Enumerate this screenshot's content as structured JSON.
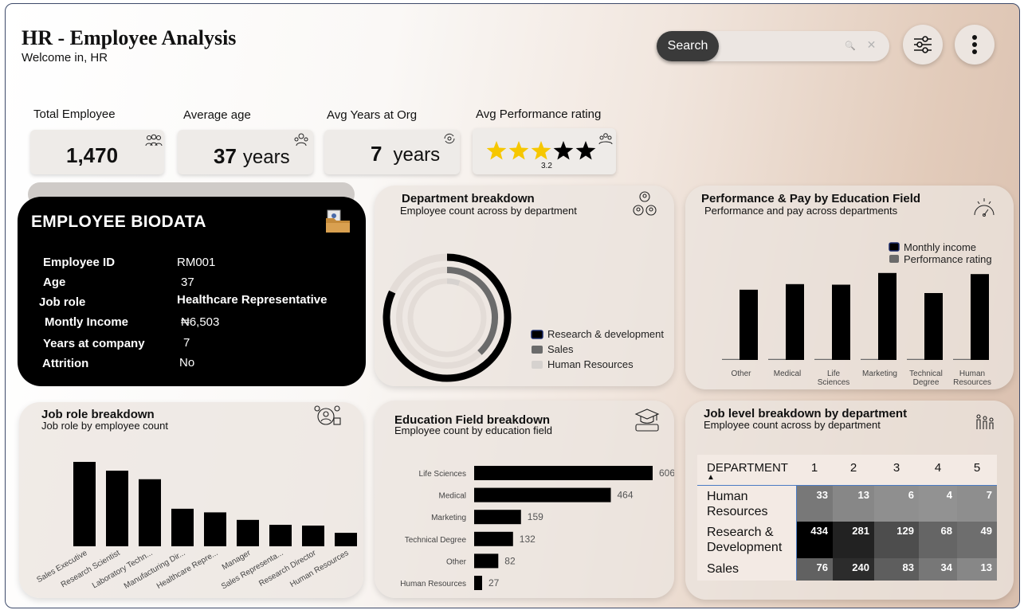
{
  "header": {
    "title": "HR - Employee Analysis",
    "subtitle": "Welcome in, HR",
    "search_label": "Search",
    "search_icon": "🔍",
    "clear_icon": "✕"
  },
  "kpis": [
    {
      "label": "Total Employee",
      "value": "1,470",
      "unit": ""
    },
    {
      "label": "Average age",
      "value": "37",
      "unit": "years"
    },
    {
      "label": "Avg Years at Org",
      "value": "7",
      "unit": "years"
    },
    {
      "label": "Avg Performance rating",
      "value": "3.2",
      "stars_filled": 3,
      "stars_total": 5,
      "colors": {
        "filled": "#f6c700",
        "empty": "#000000"
      }
    }
  ],
  "biodata": {
    "title": "EMPLOYEE BIODATA",
    "fields": [
      {
        "label": "Employee ID",
        "value": "RM001"
      },
      {
        "label": "Age",
        "value": "37"
      },
      {
        "label": "Job role",
        "value": "Healthcare Representative"
      },
      {
        "label": "Montly Income",
        "value": "₦6,503"
      },
      {
        "label": "Years at company",
        "value": "7"
      },
      {
        "label": "Attrition",
        "value": "No"
      }
    ]
  },
  "colors": {
    "primary": "#000000",
    "secondary": "#6b6b6b",
    "tertiary": "#d6d2cf",
    "panel": "#ebe4df"
  },
  "chart_data": [
    {
      "id": "department",
      "type": "pie",
      "title": "Department breakdown",
      "subtitle": "Employee count across by department",
      "categories": [
        "Research & development",
        "Sales",
        "Human Resources"
      ],
      "values": [
        961,
        446,
        63
      ],
      "legend_position": "right"
    },
    {
      "id": "edu_perf_pay",
      "type": "bar",
      "title": "Performance & Pay by Education Field",
      "subtitle": "Performance and pay across departments",
      "categories": [
        "Other",
        "Medical",
        "Life Sciences",
        "Marketing",
        "Technical Degree",
        "Human Resources"
      ],
      "series": [
        {
          "name": "Monthly income",
          "values": [
            6300,
            6800,
            6750,
            7800,
            6000,
            7700
          ]
        },
        {
          "name": "Performance rating",
          "values": [
            3.1,
            3.2,
            3.1,
            3.1,
            3.2,
            3.1
          ]
        }
      ],
      "legend_position": "top-right"
    },
    {
      "id": "job_role",
      "type": "bar",
      "title": "Job role breakdown",
      "subtitle": "Job role by employee count",
      "categories": [
        "Sales Executive",
        "Research Scientist",
        "Laboratory Techn...",
        "Manufacturing Dir...",
        "Healthcare Repre...",
        "Manager",
        "Sales Representa...",
        "Research Director",
        "Human Resources"
      ],
      "values": [
        326,
        292,
        259,
        145,
        131,
        102,
        83,
        80,
        52
      ]
    },
    {
      "id": "education",
      "type": "bar",
      "orientation": "horizontal",
      "title": "Education Field breakdown",
      "subtitle": "Employee count by education field",
      "categories": [
        "Life Sciences",
        "Medical",
        "Marketing",
        "Technical Degree",
        "Other",
        "Human Resources"
      ],
      "values": [
        606,
        464,
        159,
        132,
        82,
        27
      ]
    },
    {
      "id": "job_level",
      "type": "heatmap",
      "title": "Job level breakdown by department",
      "subtitle": "Employee count across by department",
      "header": "DEPARTMENT",
      "columns": [
        "1",
        "2",
        "3",
        "4",
        "5"
      ],
      "rows": [
        {
          "name": "Human Resources",
          "values": [
            33,
            13,
            6,
            4,
            7
          ]
        },
        {
          "name": "Research & Development",
          "values": [
            434,
            281,
            129,
            68,
            49
          ]
        },
        {
          "name": "Sales",
          "values": [
            76,
            240,
            83,
            34,
            13
          ]
        }
      ]
    }
  ]
}
